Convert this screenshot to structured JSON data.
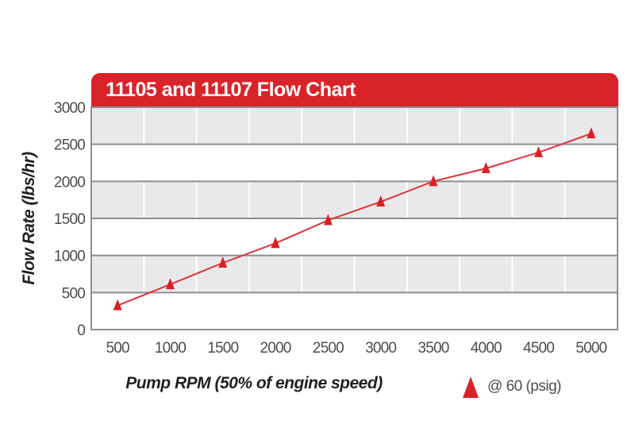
{
  "banner": {
    "title": "11105 and 11107 Flow Chart"
  },
  "chart_data": {
    "type": "line",
    "title": "11105 and 11107 Flow Chart",
    "categories": [
      "500",
      "1000",
      "1500",
      "2000",
      "2500",
      "3000",
      "3500",
      "4000",
      "4500",
      "5000"
    ],
    "series": [
      {
        "name": "@ 60 (psig)",
        "marker": "triangle",
        "values": [
          325,
          610,
          900,
          1165,
          1475,
          1725,
          2000,
          2175,
          2390,
          2645
        ]
      }
    ],
    "xlabel": "Pump RPM (50% of engine speed)",
    "ylabel": "Flow Rate (lbs/hr)",
    "ylim": [
      0,
      3000
    ],
    "y_ticks": [
      0,
      500,
      1000,
      1500,
      2000,
      2500,
      3000
    ],
    "grid": "alternating-horizontal-bands-with-vertical-category-lines",
    "legend_position": "bottom-right"
  },
  "colors": {
    "accent_red": "#d92328",
    "series_red": "#e23238",
    "marker_red": "#da2127",
    "band_gray": "#e9e9ec",
    "grid_gray": "#8d8e90",
    "tick_text": "#4d4d4f",
    "title_text": "#231f20",
    "background": "#ffffff"
  }
}
